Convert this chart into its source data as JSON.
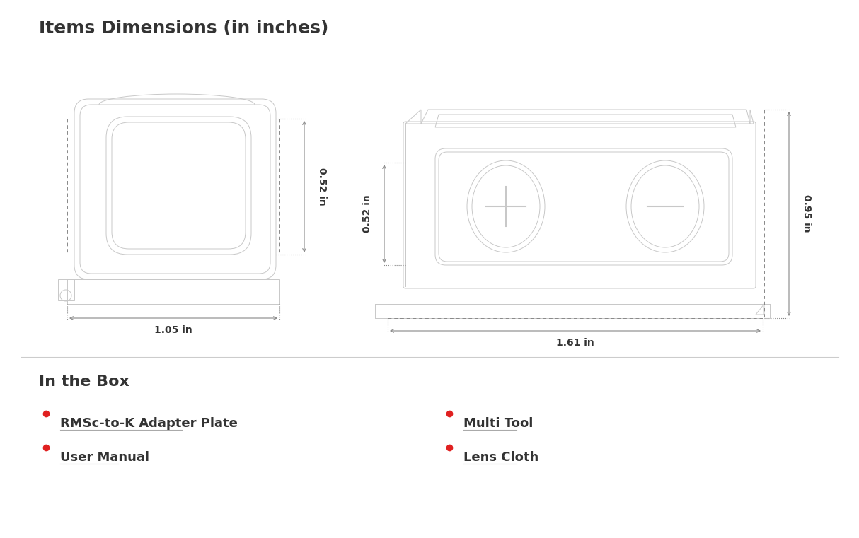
{
  "title": "Items Dimensions (in inches)",
  "title_fontsize": 18,
  "title_fontweight": "bold",
  "bg_color": "#ffffff",
  "drawing_color": "#c8c8c8",
  "text_color": "#333333",
  "dim_color": "#888888",
  "section_box_title": "In the Box",
  "box_items_left": [
    "RMSc-to-K Adapter Plate",
    "User Manual"
  ],
  "box_items_right": [
    "Multi Tool",
    "Lens Cloth"
  ],
  "bullet_color": "#e02020",
  "dim1_width": "1.05 in",
  "dim1_height": "0.52 in",
  "dim2_width": "1.61 in",
  "dim2_height": "0.95 in"
}
